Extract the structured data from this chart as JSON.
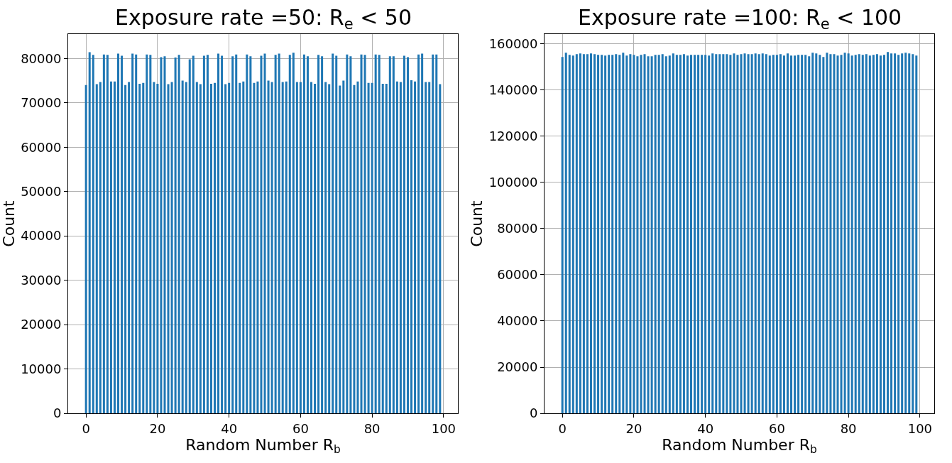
{
  "chart_data": [
    {
      "type": "bar",
      "title": "Exposure rate =50: R$_{e}$ < 50",
      "xlabel": "Random Number R$_{b}$",
      "ylabel": "Count",
      "color": "#1f77b4",
      "grid": true,
      "x": [
        0,
        1,
        2,
        3,
        4,
        5,
        6,
        7,
        8,
        9,
        10,
        11,
        12,
        13,
        14,
        15,
        16,
        17,
        18,
        19,
        20,
        21,
        22,
        23,
        24,
        25,
        26,
        27,
        28,
        29,
        30,
        31,
        32,
        33,
        34,
        35,
        36,
        37,
        38,
        39,
        40,
        41,
        42,
        43,
        44,
        45,
        46,
        47,
        48,
        49,
        50,
        51,
        52,
        53,
        54,
        55,
        56,
        57,
        58,
        59,
        60,
        61,
        62,
        63,
        64,
        65,
        66,
        67,
        68,
        69,
        70,
        71,
        72,
        73,
        74,
        75,
        76,
        77,
        78,
        79,
        80,
        81,
        82,
        83,
        84,
        85,
        86,
        87,
        88,
        89,
        90,
        91,
        92,
        93,
        94,
        95,
        96,
        97,
        98,
        99
      ],
      "values": [
        74000,
        81400,
        80800,
        74200,
        74700,
        80900,
        80800,
        74800,
        74800,
        81100,
        80600,
        74000,
        74700,
        81100,
        80900,
        74300,
        74500,
        80900,
        80800,
        74700,
        74300,
        80300,
        80500,
        74200,
        74700,
        80200,
        80800,
        75000,
        74700,
        79800,
        80600,
        74700,
        74200,
        80600,
        80800,
        74300,
        74500,
        81100,
        80600,
        74200,
        74500,
        80500,
        80900,
        74500,
        74800,
        80900,
        80500,
        74500,
        74800,
        80600,
        81100,
        75000,
        74700,
        80800,
        81100,
        74700,
        74800,
        80800,
        81300,
        74700,
        74700,
        80900,
        80500,
        74700,
        74300,
        80800,
        80500,
        74700,
        74200,
        81100,
        80600,
        73900,
        75000,
        80900,
        80500,
        74000,
        74800,
        80900,
        80800,
        74500,
        74500,
        80900,
        80800,
        74300,
        74300,
        80500,
        80500,
        74800,
        74700,
        80600,
        80300,
        75100,
        74800,
        80900,
        81100,
        74700,
        74700,
        80900,
        80900,
        74200
      ],
      "xlim": [
        -5,
        104
      ],
      "xticks": [
        0,
        20,
        40,
        60,
        80,
        100
      ],
      "ylim": [
        0,
        85500
      ],
      "yticks": [
        0,
        10000,
        20000,
        30000,
        40000,
        50000,
        60000,
        70000,
        80000
      ]
    },
    {
      "type": "bar",
      "title": "Exposure rate =100: R$_{e}$ < 100",
      "xlabel": "Random Number R$_{b}$",
      "ylabel": "Count",
      "color": "#1f77b4",
      "grid": true,
      "x": [
        0,
        1,
        2,
        3,
        4,
        5,
        6,
        7,
        8,
        9,
        10,
        11,
        12,
        13,
        14,
        15,
        16,
        17,
        18,
        19,
        20,
        21,
        22,
        23,
        24,
        25,
        26,
        27,
        28,
        29,
        30,
        31,
        32,
        33,
        34,
        35,
        36,
        37,
        38,
        39,
        40,
        41,
        42,
        43,
        44,
        45,
        46,
        47,
        48,
        49,
        50,
        51,
        52,
        53,
        54,
        55,
        56,
        57,
        58,
        59,
        60,
        61,
        62,
        63,
        64,
        65,
        66,
        67,
        68,
        69,
        70,
        71,
        72,
        73,
        74,
        75,
        76,
        77,
        78,
        79,
        80,
        81,
        82,
        83,
        84,
        85,
        86,
        87,
        88,
        89,
        90,
        91,
        92,
        93,
        94,
        95,
        96,
        97,
        98,
        99
      ],
      "values": [
        154400,
        156200,
        155300,
        155000,
        155600,
        155900,
        155600,
        155600,
        155900,
        155600,
        155300,
        155300,
        155000,
        155300,
        155300,
        155600,
        155300,
        156200,
        155000,
        155600,
        155300,
        154700,
        155300,
        155600,
        154700,
        154700,
        155300,
        155300,
        155600,
        154700,
        155000,
        155900,
        155300,
        155300,
        155600,
        155000,
        155300,
        155300,
        155300,
        155300,
        155300,
        155000,
        155900,
        155600,
        155600,
        155600,
        155600,
        155300,
        155900,
        155300,
        155600,
        155900,
        155600,
        155600,
        155900,
        155600,
        155900,
        155600,
        155000,
        155300,
        155300,
        155600,
        155000,
        155900,
        155000,
        155000,
        155300,
        155300,
        155300,
        154700,
        156200,
        155900,
        155300,
        154400,
        156200,
        155600,
        155600,
        155000,
        155300,
        156200,
        155900,
        155000,
        155300,
        155600,
        155300,
        155600,
        155000,
        155300,
        155600,
        155000,
        155300,
        156500,
        155900,
        155900,
        155300,
        155900,
        156200,
        155900,
        155600,
        155000
      ],
      "xlim": [
        -5,
        104
      ],
      "xticks": [
        0,
        20,
        40,
        60,
        80,
        100
      ],
      "ylim": [
        0,
        164300
      ],
      "yticks": [
        0,
        20000,
        40000,
        60000,
        80000,
        100000,
        120000,
        140000,
        160000
      ]
    }
  ]
}
